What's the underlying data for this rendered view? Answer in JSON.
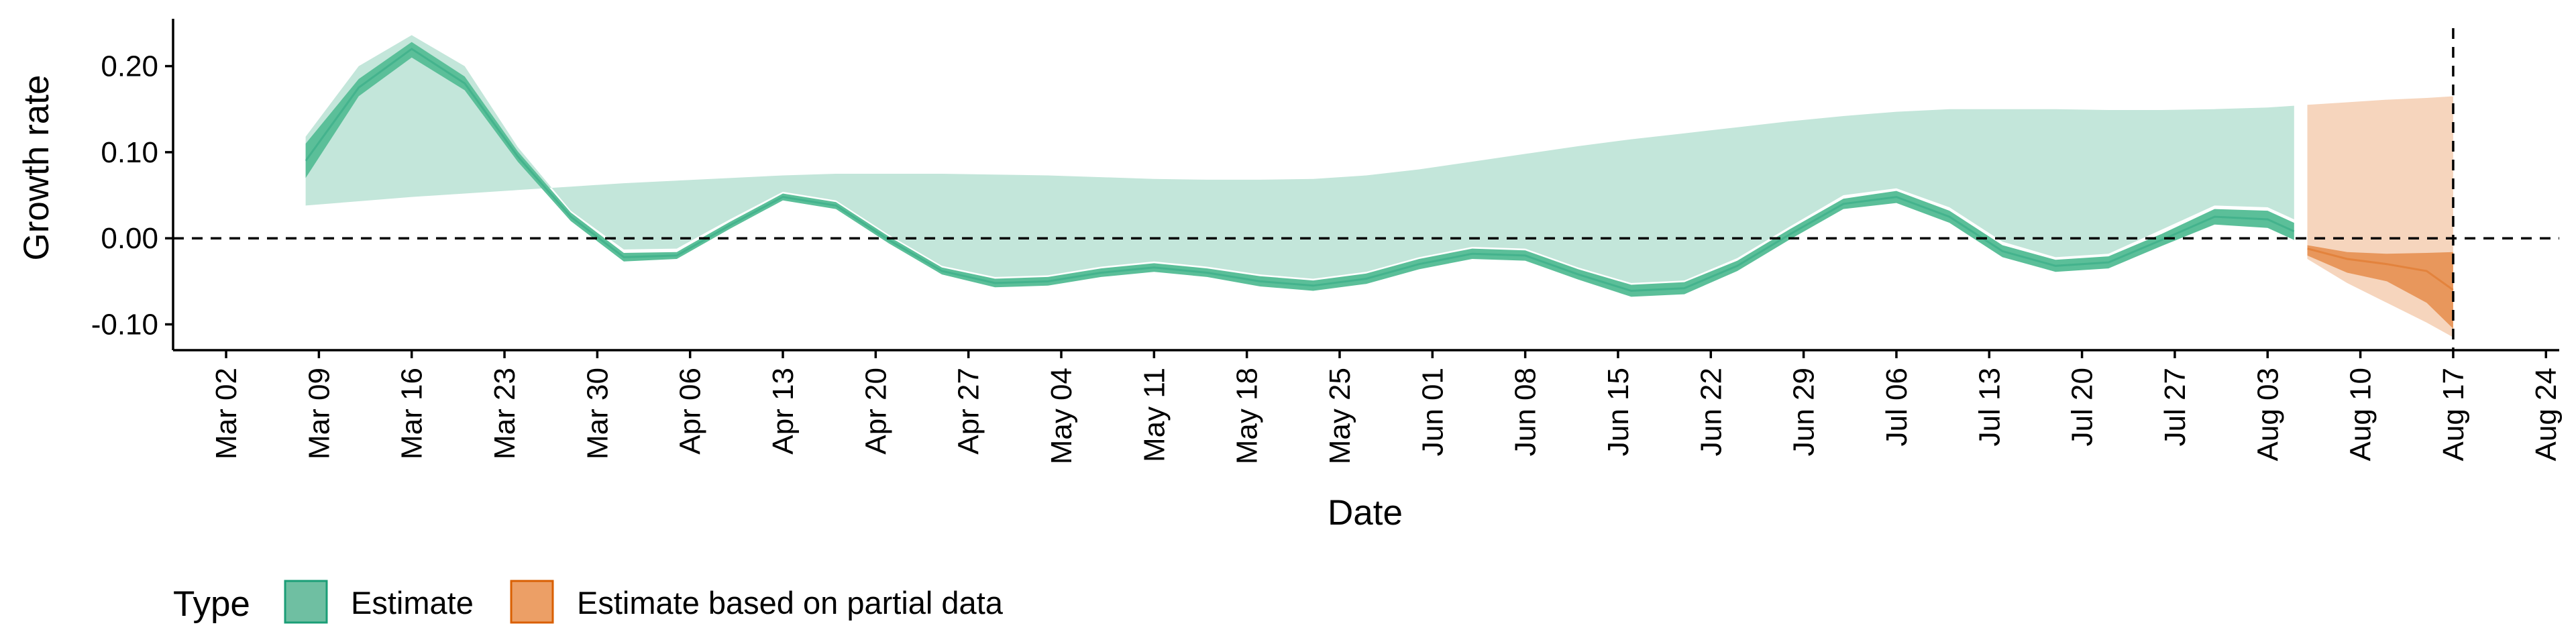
{
  "chart_data": {
    "type": "area",
    "xlabel": "Date",
    "ylabel": "Growth rate",
    "ylim": [
      -0.13,
      0.255
    ],
    "xlim": [
      "2020-02-27",
      "2020-08-25"
    ],
    "grid": false,
    "legend_placement": "bottom",
    "zero_line": {
      "y": 0.0,
      "style": "dashed"
    },
    "vertical_marker": {
      "x": "2020-08-17",
      "style": "dashed"
    },
    "y_ticks": [
      {
        "value": 0.2,
        "label": "0.20"
      },
      {
        "value": 0.1,
        "label": "0.10"
      },
      {
        "value": 0.0,
        "label": "0.00"
      },
      {
        "value": -0.1,
        "label": "-0.10"
      }
    ],
    "x_ticks": [
      {
        "date": "2020-03-02",
        "label": "Mar 02"
      },
      {
        "date": "2020-03-09",
        "label": "Mar 09"
      },
      {
        "date": "2020-03-16",
        "label": "Mar 16"
      },
      {
        "date": "2020-03-23",
        "label": "Mar 23"
      },
      {
        "date": "2020-03-30",
        "label": "Mar 30"
      },
      {
        "date": "2020-04-06",
        "label": "Apr 06"
      },
      {
        "date": "2020-04-13",
        "label": "Apr 13"
      },
      {
        "date": "2020-04-20",
        "label": "Apr 20"
      },
      {
        "date": "2020-04-27",
        "label": "Apr 27"
      },
      {
        "date": "2020-05-04",
        "label": "May 04"
      },
      {
        "date": "2020-05-11",
        "label": "May 11"
      },
      {
        "date": "2020-05-18",
        "label": "May 18"
      },
      {
        "date": "2020-05-25",
        "label": "May 25"
      },
      {
        "date": "2020-06-01",
        "label": "Jun 01"
      },
      {
        "date": "2020-06-08",
        "label": "Jun 08"
      },
      {
        "date": "2020-06-15",
        "label": "Jun 15"
      },
      {
        "date": "2020-06-22",
        "label": "Jun 22"
      },
      {
        "date": "2020-06-29",
        "label": "Jun 29"
      },
      {
        "date": "2020-07-06",
        "label": "Jul 06"
      },
      {
        "date": "2020-07-13",
        "label": "Jul 13"
      },
      {
        "date": "2020-07-20",
        "label": "Jul 20"
      },
      {
        "date": "2020-07-27",
        "label": "Jul 27"
      },
      {
        "date": "2020-08-03",
        "label": "Aug 03"
      },
      {
        "date": "2020-08-10",
        "label": "Aug 10"
      },
      {
        "date": "2020-08-17",
        "label": "Aug 17"
      },
      {
        "date": "2020-08-24",
        "label": "Aug 24"
      }
    ],
    "legend": {
      "title": "Type",
      "entries": [
        {
          "label": "Estimate",
          "fill": "#6fbfa2",
          "stroke": "#1b9e77"
        },
        {
          "label": "Estimate based on partial data",
          "fill": "#ec9f66",
          "stroke": "#d95f02"
        }
      ]
    },
    "series": [
      {
        "name": "Estimate",
        "color": "#1b9e77",
        "x": [
          "2020-03-08",
          "2020-03-12",
          "2020-03-16",
          "2020-03-20",
          "2020-03-24",
          "2020-03-28",
          "2020-04-01",
          "2020-04-05",
          "2020-04-09",
          "2020-04-13",
          "2020-04-17",
          "2020-04-21",
          "2020-04-25",
          "2020-04-29",
          "2020-05-03",
          "2020-05-07",
          "2020-05-11",
          "2020-05-15",
          "2020-05-19",
          "2020-05-23",
          "2020-05-27",
          "2020-05-31",
          "2020-06-04",
          "2020-06-08",
          "2020-06-12",
          "2020-06-16",
          "2020-06-20",
          "2020-06-24",
          "2020-06-28",
          "2020-07-02",
          "2020-07-06",
          "2020-07-10",
          "2020-07-14",
          "2020-07-18",
          "2020-07-22",
          "2020-07-26",
          "2020-07-30",
          "2020-08-03",
          "2020-08-05"
        ],
        "median": [
          0.09,
          0.175,
          0.22,
          0.18,
          0.095,
          0.025,
          -0.022,
          -0.02,
          0.015,
          0.048,
          0.038,
          -0.002,
          -0.038,
          -0.052,
          -0.05,
          -0.04,
          -0.034,
          -0.04,
          -0.05,
          -0.055,
          -0.047,
          -0.03,
          -0.018,
          -0.02,
          -0.042,
          -0.061,
          -0.058,
          -0.032,
          0.005,
          0.04,
          0.048,
          0.025,
          -0.015,
          -0.032,
          -0.028,
          -0.002,
          0.025,
          0.022,
          0.008
        ],
        "band_20_low": [
          0.07,
          0.165,
          0.21,
          0.172,
          0.089,
          0.02,
          -0.027,
          -0.024,
          0.011,
          0.044,
          0.034,
          -0.006,
          -0.042,
          -0.057,
          -0.055,
          -0.045,
          -0.039,
          -0.045,
          -0.056,
          -0.061,
          -0.053,
          -0.036,
          -0.024,
          -0.026,
          -0.048,
          -0.068,
          -0.065,
          -0.038,
          -0.001,
          0.034,
          0.041,
          0.018,
          -0.022,
          -0.039,
          -0.035,
          -0.009,
          0.016,
          0.012,
          -0.002
        ],
        "band_20_high": [
          0.11,
          0.185,
          0.228,
          0.188,
          0.101,
          0.03,
          -0.017,
          -0.016,
          0.019,
          0.052,
          0.042,
          0.002,
          -0.034,
          -0.047,
          -0.045,
          -0.035,
          -0.029,
          -0.035,
          -0.044,
          -0.049,
          -0.041,
          -0.024,
          -0.012,
          -0.014,
          -0.036,
          -0.054,
          -0.051,
          -0.026,
          0.011,
          0.046,
          0.055,
          0.032,
          -0.008,
          -0.025,
          -0.021,
          0.005,
          0.034,
          0.032,
          0.018
        ],
        "band_90_low": [
          0.038,
          0.043,
          0.048,
          0.052,
          0.056,
          0.06,
          0.064,
          0.067,
          0.07,
          0.073,
          0.075,
          0.075,
          0.075,
          0.074,
          0.073,
          0.071,
          0.069,
          0.068,
          0.068,
          0.069,
          0.073,
          0.08,
          0.089,
          0.098,
          0.107,
          0.115,
          0.122,
          0.129,
          0.136,
          0.142,
          0.147,
          0.15,
          0.15,
          0.15,
          0.149,
          0.149,
          0.15,
          0.152,
          0.154
        ],
        "band_90_high": [
          0.118,
          0.2,
          0.236,
          0.2,
          0.106,
          0.032,
          -0.013,
          -0.012,
          0.022,
          0.054,
          0.044,
          0.004,
          -0.032,
          -0.045,
          -0.043,
          -0.033,
          -0.027,
          -0.033,
          -0.042,
          -0.047,
          -0.039,
          -0.022,
          -0.01,
          -0.012,
          -0.034,
          -0.052,
          -0.049,
          -0.023,
          0.014,
          0.05,
          0.058,
          0.036,
          -0.004,
          -0.022,
          -0.018,
          0.01,
          0.038,
          0.036,
          0.022
        ]
      },
      {
        "name": "Estimate based on partial data",
        "color": "#d95f02",
        "x": [
          "2020-08-06",
          "2020-08-09",
          "2020-08-12",
          "2020-08-15",
          "2020-08-17"
        ],
        "median": [
          -0.012,
          -0.024,
          -0.03,
          -0.038,
          -0.06
        ],
        "band_20_low": [
          -0.02,
          -0.04,
          -0.05,
          -0.075,
          -0.105
        ],
        "band_20_high": [
          -0.008,
          -0.016,
          -0.018,
          -0.017,
          -0.016
        ],
        "band_90_low": [
          0.155,
          0.158,
          0.161,
          0.163,
          0.165
        ],
        "band_90_high": [
          -0.024,
          -0.052,
          -0.075,
          -0.098,
          -0.115
        ]
      }
    ]
  }
}
